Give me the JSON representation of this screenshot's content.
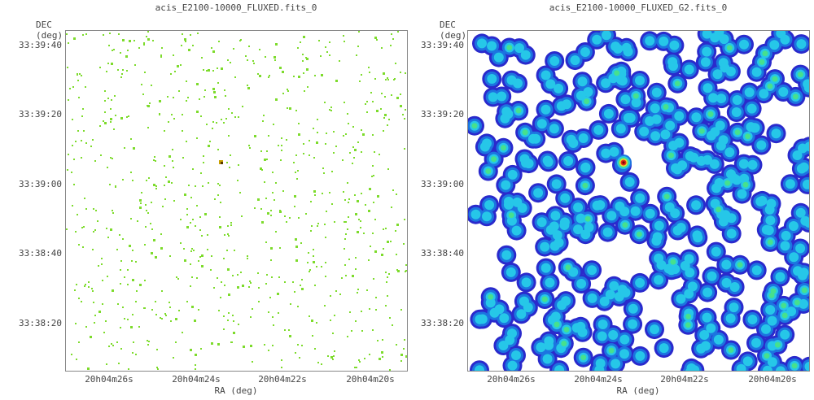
{
  "chart_data": [
    {
      "type": "heatmap",
      "title": "acis_E2100-10000_FLUXED.fits_0",
      "xlabel": "RA (deg)",
      "ylabel": "DEC (deg)",
      "x_ticks": [
        "20h04m26s",
        "20h04m24s",
        "20h04m22s",
        "20h04m20s"
      ],
      "y_ticks": [
        "33:39:40",
        "33:39:20",
        "33:39:00",
        "33:38:40",
        "33:38:20"
      ],
      "colormap": [
        "#ffffff",
        "#7ddb2c",
        "#c8a000",
        "#5a3a00"
      ],
      "style": "sparse pixels",
      "bright_source": {
        "ra": "20h04m23.5s",
        "dec": "33:39:06"
      }
    },
    {
      "type": "heatmap",
      "title": "acis_E2100-10000_FLUXED_G2.fits_0",
      "xlabel": "RA (deg)",
      "ylabel": "DEC (deg)",
      "x_ticks": [
        "20h04m26s",
        "20h04m24s",
        "20h04m22s",
        "20h04m20s"
      ],
      "y_ticks": [
        "33:39:40",
        "33:39:20",
        "33:39:00",
        "33:38:40",
        "33:38:20"
      ],
      "colormap": [
        "#ffffff",
        "#2a2acc",
        "#1c74e0",
        "#26c7e8",
        "#46e08e",
        "#e8e030",
        "#e02a1a"
      ],
      "style": "gaussian smoothed",
      "bright_source": {
        "ra": "20h04m23.5s",
        "dec": "33:39:06"
      }
    }
  ]
}
